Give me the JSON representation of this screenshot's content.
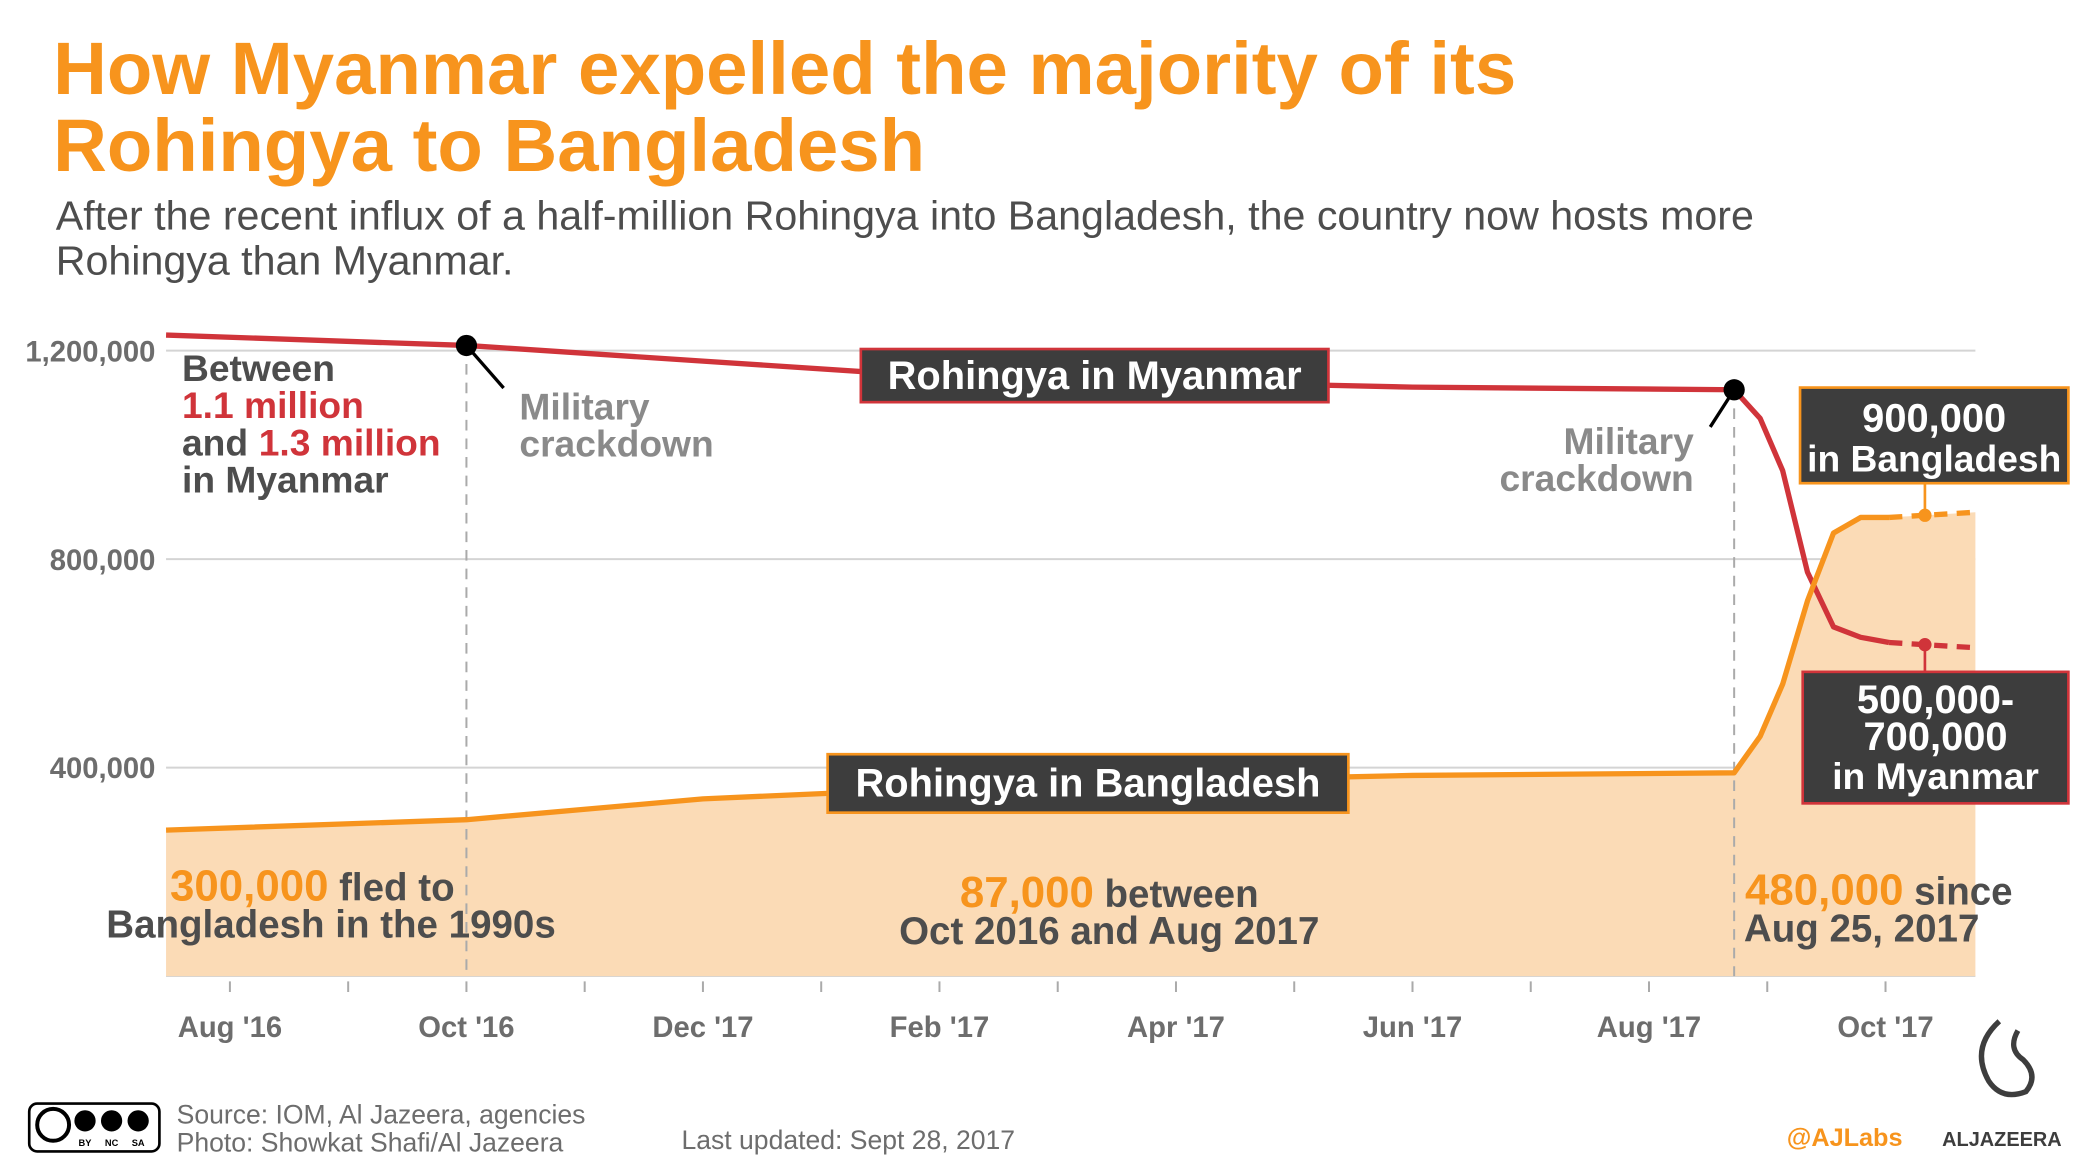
{
  "header": {
    "title_lines": [
      "How Myanmar expelled the majority of its",
      "Rohingya to Bangladesh"
    ],
    "subtitle_lines": [
      "After the recent influx of a half-million Rohingya into Bangladesh, the country now hosts more",
      "Rohingya than Myanmar."
    ]
  },
  "chart_data": {
    "type": "line",
    "x": [
      -0.54,
      2.0,
      4.0,
      6.0,
      8.0,
      10.0,
      12.72,
      12.94,
      13.13,
      13.34,
      13.56,
      13.79,
      14.03,
      14.76
    ],
    "xlim": [
      -0.54,
      14.76
    ],
    "xticks": [
      {
        "value": 0,
        "label": "Aug '16"
      },
      {
        "value": 1,
        "label": null
      },
      {
        "value": 2,
        "label": "Oct '16"
      },
      {
        "value": 3,
        "label": null
      },
      {
        "value": 4,
        "label": "Dec '17"
      },
      {
        "value": 5,
        "label": null
      },
      {
        "value": 6,
        "label": "Feb '17"
      },
      {
        "value": 7,
        "label": null
      },
      {
        "value": 8,
        "label": "Apr '17"
      },
      {
        "value": 9,
        "label": null
      },
      {
        "value": 10,
        "label": "Jun '17"
      },
      {
        "value": 11,
        "label": null
      },
      {
        "value": 12,
        "label": "Aug '17"
      },
      {
        "value": 13,
        "label": null
      },
      {
        "value": 14,
        "label": "Oct '17"
      }
    ],
    "ylim": [
      0,
      1300000
    ],
    "yticks": [
      {
        "value": 400000,
        "label": "400,000"
      },
      {
        "value": 800000,
        "label": "800,000"
      },
      {
        "value": 1200000,
        "label": "1,200,000"
      }
    ],
    "grid": true,
    "dashed_from_index": 12,
    "series": [
      {
        "name": "Rohingya in Myanmar",
        "color": "#d0343a",
        "area": false,
        "values": [
          1230000,
          1210000,
          1180000,
          1150000,
          1140000,
          1130000,
          1125000,
          1070000,
          970000,
          775000,
          670000,
          650000,
          640000,
          630000
        ]
      },
      {
        "name": "Rohingya in Bangladesh",
        "color": "#f7941d",
        "area": true,
        "area_color": "#fbdbb6",
        "values": [
          280000,
          300000,
          340000,
          360000,
          375000,
          385000,
          390000,
          460000,
          560000,
          720000,
          850000,
          880000,
          880000,
          890000
        ]
      }
    ],
    "crackdown_points": [
      1,
      6
    ],
    "crackdown_label": [
      "Military",
      "crackdown"
    ],
    "range_note": {
      "line1": "Between",
      "low": "1.1 million",
      "and": "and",
      "high": "1.3 million",
      "line4": "in Myanmar"
    },
    "end_labels": {
      "bangladesh": [
        "900,000",
        "in Bangladesh"
      ],
      "myanmar": [
        "500,000-",
        "700,000",
        "in Myanmar"
      ]
    },
    "notes": [
      {
        "highlight": "300,000",
        "text": "fled to",
        "line2": "Bangladesh in the 1990s"
      },
      {
        "highlight": "87,000",
        "text": "between",
        "line2": "Oct 2016 and Aug 2017"
      },
      {
        "highlight": "480,000",
        "text": "since",
        "line2": "Aug 25, 2017"
      }
    ]
  },
  "footer": {
    "license": [
      "BY",
      "NC",
      "SA"
    ],
    "source": "Source: IOM, Al Jazeera, agencies",
    "photo": "Photo: Showkat Shafi/Al Jazeera",
    "updated": "Last updated: Sept 28, 2017",
    "handle": "@AJLabs",
    "brand": "ALJAZEERA"
  }
}
